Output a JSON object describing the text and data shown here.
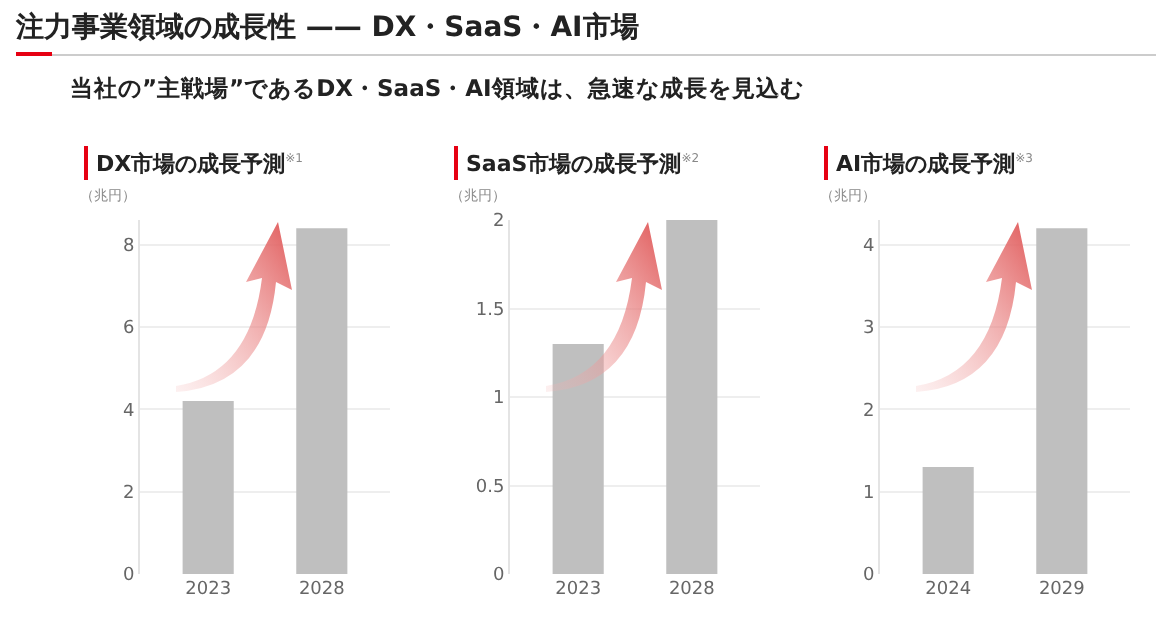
{
  "chart_data": [
    {
      "type": "other",
      "title": "注力事業領域の成長性 —— DX・SaaS・AI市場",
      "subtitle": "当社の”主戦場”であるDX・SaaS・AI領域は、急速な成長を見込む"
    },
    {
      "type": "bar",
      "title": "DX市場の成長予測$^{※1}$",
      "ylabel": "（兆円）",
      "categories": [
        "2023",
        "2028"
      ],
      "values": [
        4.2,
        8.4
      ],
      "color": "#bfbfbf",
      "ylim": [
        0,
        8.6
      ],
      "yticks": [
        0,
        2,
        4,
        6,
        8
      ],
      "grid": "y"
    },
    {
      "type": "bar",
      "title": "SaaS市場の成長予測$^{※2}$",
      "ylabel": "（兆円）",
      "categories": [
        "2023",
        "2028"
      ],
      "values": [
        1.3,
        2.0
      ],
      "color": "#bfbfbf",
      "ylim": [
        0,
        2
      ],
      "yticks": [
        0,
        0.5,
        1,
        1.5,
        2
      ],
      "grid": "y"
    },
    {
      "type": "bar",
      "title": "AI市場の成長予測$^{※3}$",
      "ylabel": "（兆円）",
      "categories": [
        "2024",
        "2029"
      ],
      "values": [
        1.3,
        4.2
      ],
      "color": "#bfbfbf",
      "ylim": [
        0,
        4.3
      ],
      "yticks": [
        0,
        1,
        2,
        3,
        4
      ],
      "grid": "y"
    }
  ]
}
